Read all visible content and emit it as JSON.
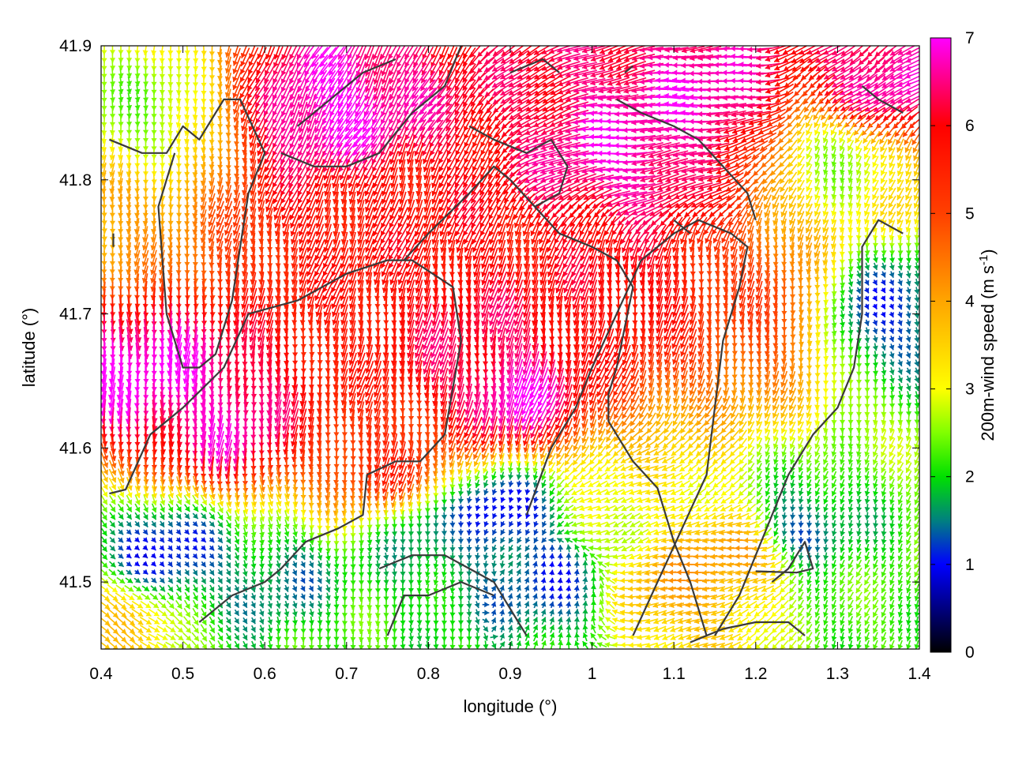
{
  "chart_data": {
    "type": "vector-field",
    "xlabel": "longitude (°)",
    "ylabel": "latitude (°)",
    "xlim": [
      0.4,
      1.4
    ],
    "ylim": [
      41.45,
      41.9
    ],
    "x_ticks": [
      "0.4",
      "0.5",
      "0.6",
      "0.7",
      "0.8",
      "0.9",
      "1",
      "1.1",
      "1.2",
      "1.3",
      "1.4"
    ],
    "x_tick_values": [
      0.4,
      0.5,
      0.6,
      0.7,
      0.8,
      0.9,
      1.0,
      1.1,
      1.2,
      1.3,
      1.4
    ],
    "y_ticks": [
      "41.5",
      "41.6",
      "41.7",
      "41.8",
      "41.9"
    ],
    "y_tick_values": [
      41.5,
      41.6,
      41.7,
      41.8,
      41.9
    ],
    "colorbar": {
      "label_main": "200m-wind speed (m s",
      "label_sup": "-1",
      "label_end": ")",
      "range": [
        0,
        7
      ],
      "ticks": [
        "0",
        "1",
        "2",
        "3",
        "4",
        "5",
        "6",
        "7"
      ],
      "tick_values": [
        0,
        1,
        2,
        3,
        4,
        5,
        6,
        7
      ],
      "palette": [
        [
          0,
          "#000000"
        ],
        [
          0.5,
          "#000080"
        ],
        [
          1,
          "#0000ff"
        ],
        [
          1.5,
          "#008080"
        ],
        [
          2,
          "#00e000"
        ],
        [
          2.5,
          "#80ff00"
        ],
        [
          3,
          "#ffff00"
        ],
        [
          4,
          "#ffa500"
        ],
        [
          5,
          "#ff4000"
        ],
        [
          6,
          "#ff0000"
        ],
        [
          6.5,
          "#ff0080"
        ],
        [
          7,
          "#ff00ff"
        ]
      ]
    },
    "wind_regions": [
      {
        "lon": 0.45,
        "lat": 41.66,
        "speed": 7.0,
        "dir_deg": 180
      },
      {
        "lon": 0.55,
        "lat": 41.62,
        "speed": 6.8,
        "dir_deg": 185
      },
      {
        "lon": 0.68,
        "lat": 41.85,
        "speed": 7.0,
        "dir_deg": 210
      },
      {
        "lon": 0.72,
        "lat": 41.78,
        "speed": 5.8,
        "dir_deg": 200
      },
      {
        "lon": 0.85,
        "lat": 41.68,
        "speed": 6.2,
        "dir_deg": 190
      },
      {
        "lon": 0.9,
        "lat": 41.64,
        "speed": 7.0,
        "dir_deg": 195
      },
      {
        "lon": 1.05,
        "lat": 41.82,
        "speed": 6.8,
        "dir_deg": 265
      },
      {
        "lon": 1.15,
        "lat": 41.86,
        "speed": 6.8,
        "dir_deg": 270
      },
      {
        "lon": 1.05,
        "lat": 41.72,
        "speed": 6.0,
        "dir_deg": 190
      },
      {
        "lon": 1.2,
        "lat": 41.7,
        "speed": 5.0,
        "dir_deg": 185
      },
      {
        "lon": 1.35,
        "lat": 41.87,
        "speed": 6.8,
        "dir_deg": 240
      },
      {
        "lon": 1.36,
        "lat": 41.7,
        "speed": 1.2,
        "dir_deg": 160
      },
      {
        "lon": 1.3,
        "lat": 41.82,
        "speed": 2.5,
        "dir_deg": 200
      },
      {
        "lon": 0.45,
        "lat": 41.85,
        "speed": 2.5,
        "dir_deg": 180
      },
      {
        "lon": 0.42,
        "lat": 41.76,
        "speed": 4.0,
        "dir_deg": 185
      },
      {
        "lon": 0.48,
        "lat": 41.52,
        "speed": 1.0,
        "dir_deg": 140
      },
      {
        "lon": 0.62,
        "lat": 41.5,
        "speed": 1.5,
        "dir_deg": 160
      },
      {
        "lon": 0.8,
        "lat": 41.53,
        "speed": 1.6,
        "dir_deg": 180
      },
      {
        "lon": 0.89,
        "lat": 41.55,
        "speed": 0.8,
        "dir_deg": 200
      },
      {
        "lon": 0.95,
        "lat": 41.5,
        "speed": 1.2,
        "dir_deg": 20
      },
      {
        "lon": 1.05,
        "lat": 41.55,
        "speed": 3.0,
        "dir_deg": 250
      },
      {
        "lon": 1.1,
        "lat": 41.5,
        "speed": 4.0,
        "dir_deg": 260
      },
      {
        "lon": 1.18,
        "lat": 41.52,
        "speed": 4.2,
        "dir_deg": 270
      },
      {
        "lon": 1.25,
        "lat": 41.54,
        "speed": 1.3,
        "dir_deg": 185
      },
      {
        "lon": 1.3,
        "lat": 41.48,
        "speed": 2.2,
        "dir_deg": 200
      },
      {
        "lon": 0.42,
        "lat": 41.47,
        "speed": 3.5,
        "dir_deg": 120
      },
      {
        "lon": 0.7,
        "lat": 41.46,
        "speed": 2.2,
        "dir_deg": 180
      },
      {
        "lon": 0.75,
        "lat": 41.59,
        "speed": 5.5,
        "dir_deg": 190
      }
    ],
    "contour_lines": [
      [
        [
          0.41,
          41.566
        ],
        [
          0.43,
          41.569
        ],
        [
          0.46,
          41.61
        ],
        [
          0.5,
          41.63
        ],
        [
          0.55,
          41.66
        ],
        [
          0.58,
          41.7
        ],
        [
          0.64,
          41.71
        ],
        [
          0.7,
          41.73
        ],
        [
          0.75,
          41.74
        ],
        [
          0.78,
          41.74
        ],
        [
          0.83,
          41.72
        ],
        [
          0.84,
          41.68
        ],
        [
          0.82,
          41.61
        ],
        [
          0.79,
          41.59
        ],
        [
          0.76,
          41.59
        ],
        [
          0.725,
          41.58
        ],
        [
          0.72,
          41.55
        ],
        [
          0.69,
          41.54
        ],
        [
          0.65,
          41.53
        ],
        [
          0.62,
          41.51
        ],
        [
          0.6,
          41.5
        ],
        [
          0.56,
          41.49
        ],
        [
          0.52,
          41.47
        ]
      ],
      [
        [
          0.41,
          41.83
        ],
        [
          0.45,
          41.82
        ],
        [
          0.48,
          41.82
        ],
        [
          0.5,
          41.84
        ],
        [
          0.52,
          41.83
        ],
        [
          0.55,
          41.86
        ],
        [
          0.57,
          41.86
        ],
        [
          0.6,
          41.82
        ],
        [
          0.58,
          41.79
        ],
        [
          0.57,
          41.75
        ],
        [
          0.56,
          41.71
        ],
        [
          0.54,
          41.67
        ],
        [
          0.52,
          41.66
        ],
        [
          0.5,
          41.66
        ],
        [
          0.48,
          41.7
        ],
        [
          0.47,
          41.78
        ],
        [
          0.49,
          41.82
        ]
      ],
      [
        [
          0.62,
          41.82
        ],
        [
          0.66,
          41.81
        ],
        [
          0.7,
          41.81
        ],
        [
          0.74,
          41.82
        ],
        [
          0.78,
          41.85
        ],
        [
          0.82,
          41.87
        ],
        [
          0.84,
          41.9
        ]
      ],
      [
        [
          0.64,
          41.84
        ],
        [
          0.68,
          41.86
        ],
        [
          0.72,
          41.88
        ],
        [
          0.76,
          41.89
        ]
      ],
      [
        [
          0.77,
          41.74
        ],
        [
          0.8,
          41.76
        ],
        [
          0.85,
          41.79
        ],
        [
          0.88,
          41.81
        ],
        [
          0.9,
          41.8
        ],
        [
          0.93,
          41.78
        ],
        [
          0.96,
          41.76
        ],
        [
          1.0,
          41.75
        ],
        [
          1.03,
          41.74
        ],
        [
          1.05,
          41.72
        ],
        [
          1.04,
          41.69
        ],
        [
          1.03,
          41.66
        ],
        [
          1.02,
          41.64
        ],
        [
          1.02,
          41.62
        ],
        [
          1.05,
          41.59
        ],
        [
          1.08,
          41.57
        ],
        [
          1.1,
          41.53
        ],
        [
          1.12,
          41.5
        ],
        [
          1.14,
          41.46
        ]
      ],
      [
        [
          0.85,
          41.84
        ],
        [
          0.88,
          41.83
        ],
        [
          0.92,
          41.82
        ],
        [
          0.95,
          41.83
        ],
        [
          0.97,
          41.81
        ],
        [
          0.96,
          41.79
        ],
        [
          0.93,
          41.78
        ]
      ],
      [
        [
          0.9,
          41.88
        ],
        [
          0.94,
          41.89
        ],
        [
          0.96,
          41.88
        ]
      ],
      [
        [
          0.74,
          41.51
        ],
        [
          0.78,
          41.52
        ],
        [
          0.82,
          41.52
        ],
        [
          0.85,
          41.51
        ],
        [
          0.88,
          41.5
        ],
        [
          0.9,
          41.48
        ],
        [
          0.92,
          41.46
        ]
      ],
      [
        [
          0.75,
          41.46
        ],
        [
          0.77,
          41.49
        ],
        [
          0.8,
          41.49
        ],
        [
          0.84,
          41.5
        ],
        [
          0.88,
          41.49
        ]
      ],
      [
        [
          0.92,
          41.55
        ],
        [
          0.95,
          41.6
        ],
        [
          0.98,
          41.63
        ],
        [
          1.0,
          41.66
        ],
        [
          1.03,
          41.7
        ],
        [
          1.06,
          41.74
        ],
        [
          1.1,
          41.76
        ],
        [
          1.13,
          41.77
        ],
        [
          1.17,
          41.76
        ],
        [
          1.19,
          41.75
        ],
        [
          1.18,
          41.72
        ],
        [
          1.16,
          41.68
        ],
        [
          1.15,
          41.63
        ],
        [
          1.14,
          41.58
        ],
        [
          1.11,
          41.54
        ],
        [
          1.08,
          41.5
        ],
        [
          1.05,
          41.46
        ]
      ],
      [
        [
          1.03,
          41.86
        ],
        [
          1.06,
          41.85
        ],
        [
          1.1,
          41.84
        ],
        [
          1.13,
          41.83
        ],
        [
          1.16,
          41.81
        ],
        [
          1.19,
          41.79
        ],
        [
          1.2,
          41.77
        ]
      ],
      [
        [
          1.1,
          41.77
        ],
        [
          1.12,
          41.76
        ]
      ],
      [
        [
          1.33,
          41.87
        ],
        [
          1.35,
          41.86
        ],
        [
          1.38,
          41.85
        ]
      ],
      [
        [
          1.38,
          41.76
        ],
        [
          1.35,
          41.77
        ],
        [
          1.33,
          41.75
        ],
        [
          1.33,
          41.7
        ],
        [
          1.32,
          41.66
        ],
        [
          1.3,
          41.63
        ],
        [
          1.27,
          41.61
        ],
        [
          1.24,
          41.58
        ],
        [
          1.22,
          41.55
        ],
        [
          1.2,
          41.52
        ],
        [
          1.18,
          41.49
        ],
        [
          1.15,
          41.46
        ]
      ],
      [
        [
          1.2,
          41.508
        ],
        [
          1.25,
          41.507
        ],
        [
          1.27,
          41.51
        ],
        [
          1.26,
          41.53
        ],
        [
          1.24,
          41.51
        ],
        [
          1.22,
          41.5
        ]
      ],
      [
        [
          1.12,
          41.455
        ],
        [
          1.16,
          41.465
        ],
        [
          1.2,
          41.47
        ],
        [
          1.24,
          41.47
        ],
        [
          1.26,
          41.46
        ]
      ],
      [
        [
          0.415,
          41.76
        ],
        [
          0.415,
          41.75
        ]
      ],
      [
        [
          1.04,
          41.88
        ],
        [
          1.05,
          41.885
        ]
      ]
    ]
  }
}
